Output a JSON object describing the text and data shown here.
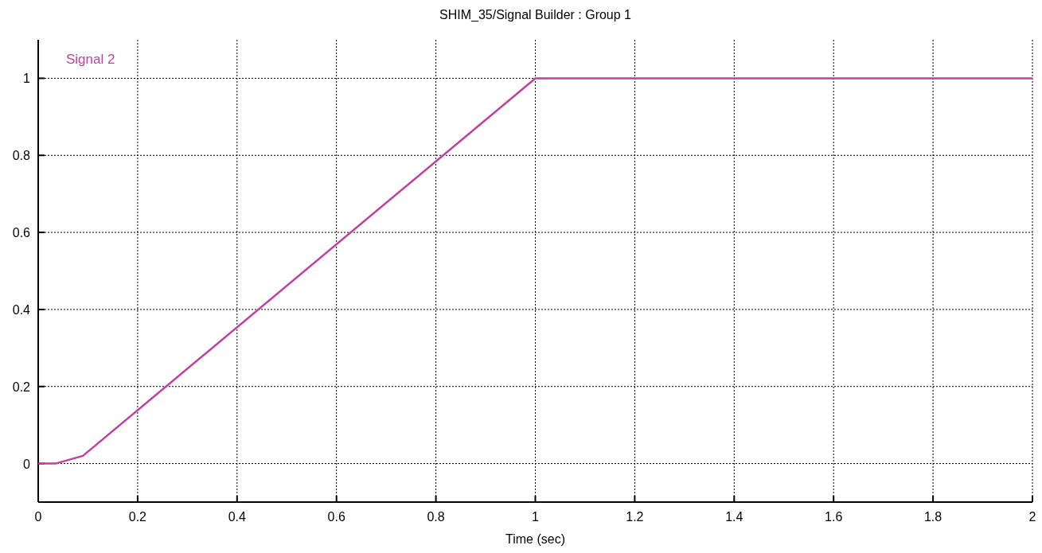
{
  "chart_data": {
    "type": "line",
    "title": "SHIM_35/Signal Builder : Group 1",
    "xlabel": "Time (sec)",
    "xlim": [
      0,
      2
    ],
    "xticks": [
      0,
      0.2,
      0.4,
      0.6,
      0.8,
      1,
      1.2,
      1.4,
      1.6,
      1.8,
      2
    ],
    "ylim": [
      -0.1,
      1.1
    ],
    "yticks": [
      0,
      0.2,
      0.4,
      0.6,
      0.8,
      1
    ],
    "grid": true,
    "legend": "top left",
    "series": [
      {
        "name": "Signal 2",
        "color": "#c040a0",
        "x": [
          0,
          0.035,
          0.09,
          1,
          2
        ],
        "values": [
          0,
          0,
          0.02,
          1,
          1
        ]
      }
    ]
  }
}
